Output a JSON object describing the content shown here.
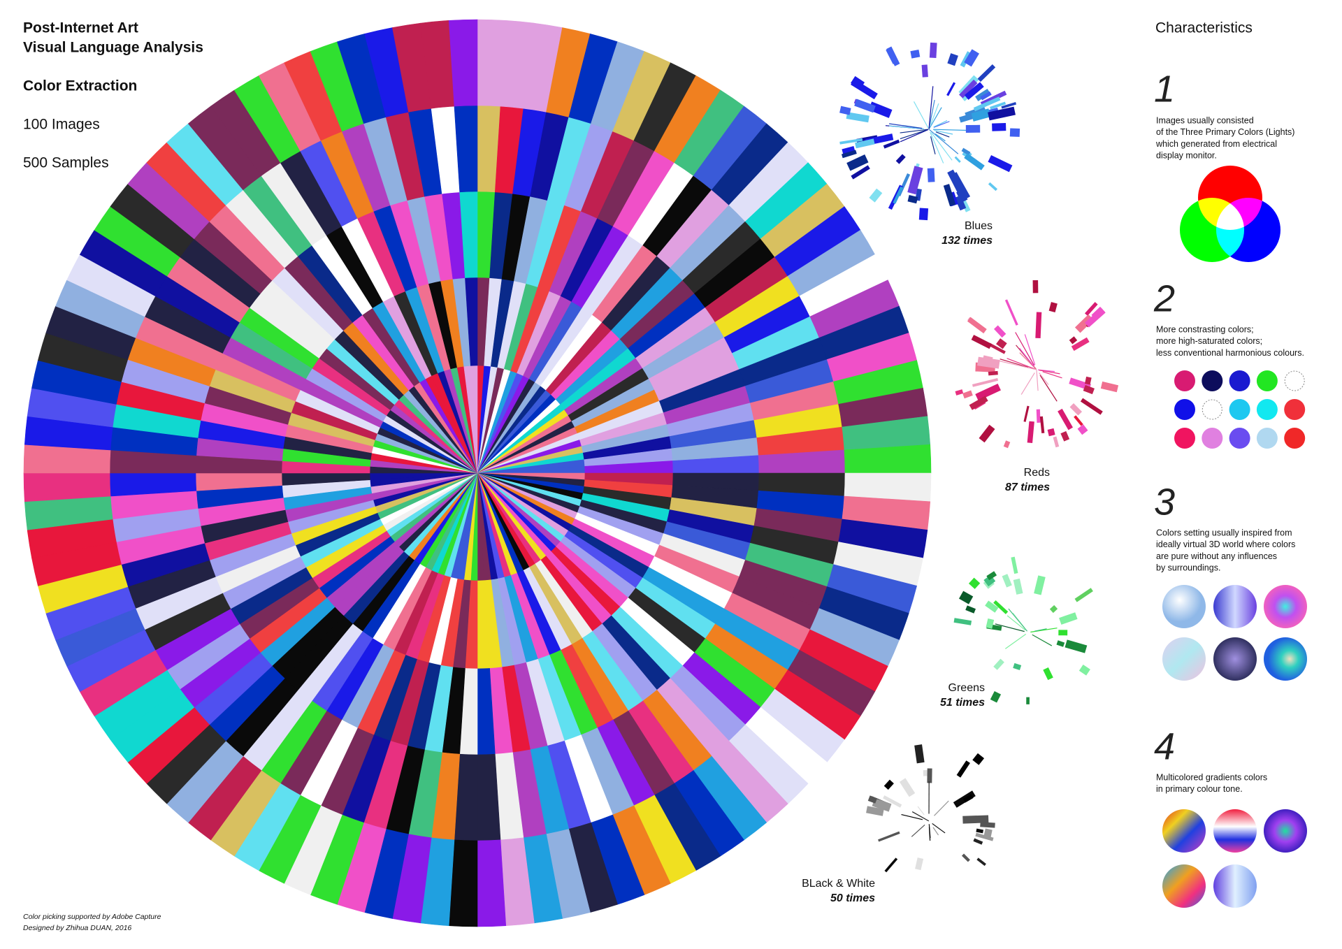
{
  "header": {
    "title_lines": [
      "Post-Internet Art",
      "Visual Language Analysis"
    ],
    "subtitle": "Color Extraction",
    "images": "100 Images",
    "samples": "500 Samples"
  },
  "clusters": [
    {
      "name": "Blues",
      "count": "132 times"
    },
    {
      "name": "Reds",
      "count": "87 times"
    },
    {
      "name": "Greens",
      "count": "51 times"
    },
    {
      "name": "BLack & White",
      "count": "50 times"
    }
  ],
  "characteristics": {
    "title": "Characteristics",
    "items": [
      {
        "number": "1",
        "lines": [
          "Images usually consisted",
          "of the Three Primary Colors (Lights)",
          "which generated from electrical",
          "display monitor."
        ]
      },
      {
        "number": "2",
        "lines": [
          "More constrasting colors;",
          "more high-saturated colors;",
          "less conventional harmonious colours."
        ]
      },
      {
        "number": "3",
        "lines": [
          "Colors setting usually inspired from",
          "ideally virtual 3D world where colors",
          "are pure without any influences",
          "by surroundings."
        ]
      },
      {
        "number": "4",
        "lines": [
          "Multicolored gradients colors",
          "in primary colour tone."
        ]
      }
    ]
  },
  "footer": [
    "Color picking supported by Adobe Capture",
    "Designed by Zhihua DUAN, 2016"
  ]
}
